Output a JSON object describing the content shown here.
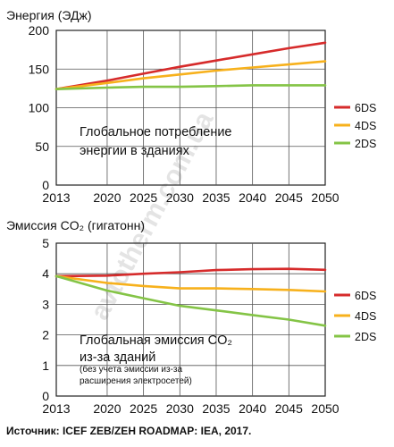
{
  "chart_data": [
    {
      "type": "line",
      "ylabel": "Энергия (ЭДж)",
      "x": [
        2013,
        2020,
        2025,
        2030,
        2035,
        2040,
        2045,
        2050
      ],
      "xlim": [
        2013,
        2050
      ],
      "ylim": [
        0,
        200
      ],
      "yticks": [
        "0",
        "50",
        "100",
        "150",
        "200"
      ],
      "xticks": [
        "2013",
        "2020",
        "2025",
        "2030",
        "2035",
        "2040",
        "2045",
        "2050"
      ],
      "grid": true,
      "legend": "right",
      "series": [
        {
          "name": "6DS",
          "color": "#d62b2b",
          "values": [
            124,
            135,
            144,
            153,
            161,
            169,
            177,
            184
          ]
        },
        {
          "name": "4DS",
          "color": "#f7b11c",
          "values": [
            124,
            132,
            138,
            143,
            148,
            152,
            156,
            160
          ]
        },
        {
          "name": "2DS",
          "color": "#84c446",
          "values": [
            124,
            126,
            127,
            127,
            128,
            129,
            129,
            129
          ]
        }
      ],
      "annotation": [
        "Глобальное потребление",
        "энергии в зданиях"
      ]
    },
    {
      "type": "line",
      "ylabel": "Эмиссия CO₂ (гигатонн)",
      "x": [
        2013,
        2020,
        2025,
        2030,
        2035,
        2040,
        2045,
        2050
      ],
      "xlim": [
        2013,
        2050
      ],
      "ylim": [
        0,
        5
      ],
      "yticks": [
        "0",
        "1",
        "2",
        "3",
        "4",
        "5"
      ],
      "xticks": [
        "2013",
        "2020",
        "2025",
        "2030",
        "2035",
        "2040",
        "2045",
        "2050"
      ],
      "grid": true,
      "legend": "right",
      "series": [
        {
          "name": "6DS",
          "color": "#d62b2b",
          "values": [
            3.92,
            3.94,
            4.0,
            4.05,
            4.12,
            4.15,
            4.16,
            4.13
          ]
        },
        {
          "name": "4DS",
          "color": "#f7b11c",
          "values": [
            3.92,
            3.7,
            3.6,
            3.52,
            3.52,
            3.5,
            3.47,
            3.42
          ]
        },
        {
          "name": "2DS",
          "color": "#84c446",
          "values": [
            3.92,
            3.45,
            3.2,
            2.95,
            2.8,
            2.65,
            2.5,
            2.3
          ]
        }
      ],
      "annotation": [
        "Глобальная эмиссия CO₂",
        "из-за зданий"
      ],
      "annotation_small": [
        "(без учета эмиссии из-за",
        "расширения электросетей)"
      ]
    }
  ],
  "source": "Источник: ICEF ZEB/ZEH ROADMAP: IEA, 2017.",
  "watermark": "avtotherm.com.ua"
}
